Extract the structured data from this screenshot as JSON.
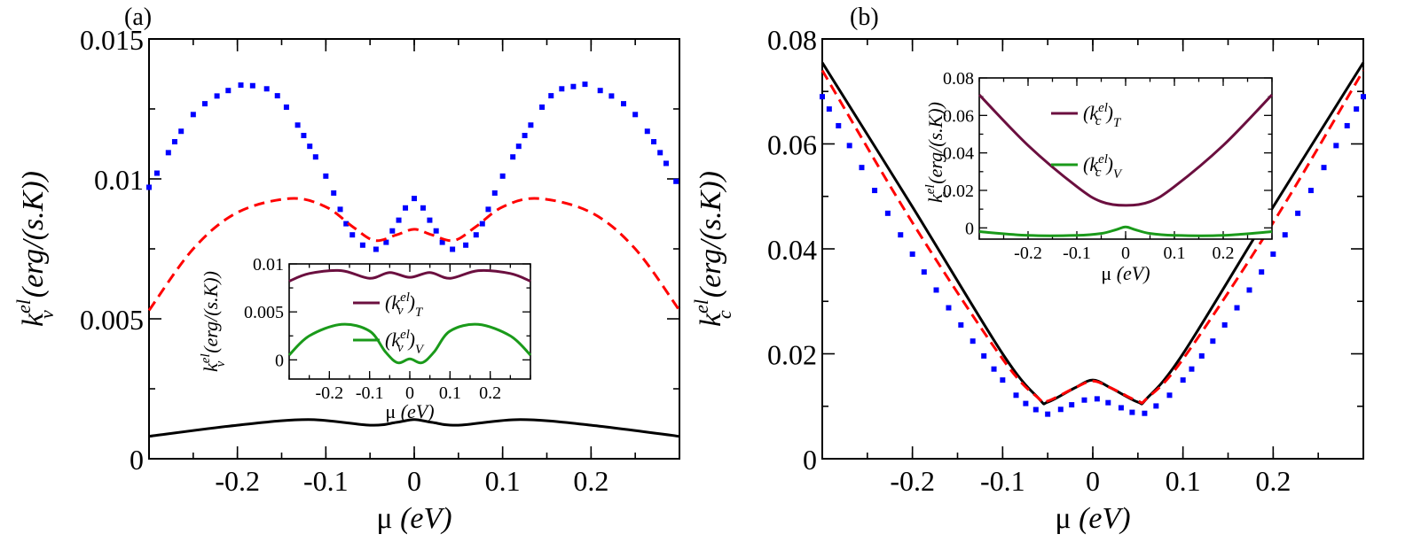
{
  "figure": {
    "panel_a_label": "(a)",
    "panel_b_label": "(b)"
  },
  "colors": {
    "black": "#000000",
    "red": "#ff0000",
    "blue": "#0000ff",
    "purple": "#6b0f3f",
    "green": "#1a9a1a"
  },
  "chart_data": [
    {
      "id": "a",
      "type": "line",
      "panel": "(a)",
      "xlabel_sym": "μ",
      "xlabel_unit": "(eV)",
      "ylabel_sym": "k",
      "ylabel_sup": "el",
      "ylabel_sub": "v",
      "ylabel_unit": "(erg/(s.K))",
      "xlim": [
        -0.3,
        0.3
      ],
      "ylim": [
        0,
        0.015
      ],
      "xticks": [
        -0.2,
        -0.1,
        0,
        0.1,
        0.2
      ],
      "xtick_labels": [
        "-0.2",
        "-0.1",
        "0",
        "0.1",
        "0.2"
      ],
      "yticks": [
        0,
        0.005,
        0.01,
        0.015
      ],
      "ytick_labels": [
        "0",
        "0.005",
        "0.01",
        "0.015"
      ],
      "series": [
        {
          "name": "blue dotted",
          "color": "#0000ff",
          "style": "dotted",
          "x": [
            -0.3,
            -0.25,
            -0.2,
            -0.18,
            -0.15,
            -0.1,
            -0.07,
            -0.04,
            -0.02,
            0,
            0.02,
            0.04,
            0.07,
            0.1,
            0.15,
            0.18,
            0.2,
            0.25,
            0.3
          ],
          "y": [
            0.0097,
            0.0123,
            0.0133,
            0.0133,
            0.0128,
            0.0101,
            0.008,
            0.0075,
            0.0084,
            0.0093,
            0.0084,
            0.0075,
            0.008,
            0.0101,
            0.0128,
            0.0133,
            0.0133,
            0.0123,
            0.0097
          ]
        },
        {
          "name": "red dashed",
          "color": "#ff0000",
          "style": "dashed",
          "x": [
            -0.3,
            -0.25,
            -0.2,
            -0.14,
            -0.1,
            -0.07,
            -0.045,
            -0.02,
            0,
            0.02,
            0.045,
            0.07,
            0.1,
            0.14,
            0.2,
            0.25,
            0.3
          ],
          "y": [
            0.0053,
            0.0075,
            0.0088,
            0.0093,
            0.009,
            0.0083,
            0.0078,
            0.008,
            0.0082,
            0.008,
            0.0078,
            0.0083,
            0.009,
            0.0093,
            0.0088,
            0.0075,
            0.0053
          ]
        },
        {
          "name": "black solid",
          "color": "#000000",
          "style": "solid",
          "x": [
            -0.3,
            -0.2,
            -0.12,
            -0.05,
            -0.02,
            0,
            0.02,
            0.05,
            0.12,
            0.2,
            0.3
          ],
          "y": [
            0.0008,
            0.0012,
            0.0014,
            0.0012,
            0.0013,
            0.0014,
            0.0013,
            0.0012,
            0.0014,
            0.0012,
            0.0008
          ]
        }
      ],
      "inset": {
        "xlabel_sym": "μ",
        "xlabel_unit": "(eV)",
        "ylabel_sym": "k",
        "ylabel_sup": "el",
        "ylabel_sub": "v",
        "ylabel_unit": "(erg/(s.K))",
        "xlim": [
          -0.3,
          0.3
        ],
        "ylim": [
          -0.002,
          0.01
        ],
        "xticks": [
          -0.2,
          -0.1,
          0,
          0.1,
          0.2
        ],
        "xtick_labels": [
          "-0.2",
          "-0.1",
          "0",
          "0.1",
          "0.2"
        ],
        "yticks": [
          0,
          0.005,
          0.01
        ],
        "ytick_labels": [
          "0",
          "0.005",
          "0.01"
        ],
        "legend": [
          {
            "sym": "(k",
            "sup": "el",
            "sub_v": "v",
            "close": ")",
            "sub": "T",
            "color": "#6b0f3f"
          },
          {
            "sym": "(k",
            "sup": "el",
            "sub_v": "v",
            "close": ")",
            "sub": "V",
            "color": "#1a9a1a"
          }
        ],
        "series": [
          {
            "name": "(k_v^el)_T",
            "color": "#6b0f3f",
            "x": [
              -0.3,
              -0.25,
              -0.17,
              -0.1,
              -0.05,
              0,
              0.05,
              0.1,
              0.17,
              0.25,
              0.3
            ],
            "y": [
              0.0082,
              0.009,
              0.0093,
              0.0085,
              0.0091,
              0.0086,
              0.0091,
              0.0085,
              0.0093,
              0.009,
              0.0082
            ]
          },
          {
            "name": "(k_v^el)_V",
            "color": "#1a9a1a",
            "x": [
              -0.3,
              -0.25,
              -0.17,
              -0.1,
              -0.06,
              -0.03,
              0,
              0.03,
              0.06,
              0.1,
              0.17,
              0.25,
              0.3
            ],
            "y": [
              0.0005,
              0.0025,
              0.0037,
              0.003,
              0.0008,
              -0.0003,
              0.0001,
              -0.0003,
              0.0008,
              0.003,
              0.0037,
              0.0025,
              0.0005
            ]
          }
        ]
      }
    },
    {
      "id": "b",
      "type": "line",
      "panel": "(b)",
      "xlabel_sym": "μ",
      "xlabel_unit": "(eV)",
      "ylabel_sym": "k",
      "ylabel_sup": "el",
      "ylabel_sub": "c",
      "ylabel_unit": "(erg/(s.K))",
      "xlim": [
        -0.3,
        0.3
      ],
      "ylim": [
        0,
        0.08
      ],
      "xticks": [
        -0.2,
        -0.1,
        0,
        0.1,
        0.2
      ],
      "xtick_labels": [
        "-0.2",
        "-0.1",
        "0",
        "0.1",
        "0.2"
      ],
      "yticks": [
        0,
        0.02,
        0.04,
        0.06,
        0.08
      ],
      "ytick_labels": [
        "0",
        "0.02",
        "0.04",
        "0.06",
        "0.08"
      ],
      "series": [
        {
          "name": "black solid",
          "color": "#000000",
          "style": "solid",
          "x": [
            -0.3,
            -0.2,
            -0.1,
            -0.06,
            -0.05,
            -0.02,
            0,
            0.02,
            0.05,
            0.06,
            0.1,
            0.2,
            0.3
          ],
          "y": [
            0.0755,
            0.048,
            0.02,
            0.0115,
            0.0108,
            0.0135,
            0.015,
            0.0135,
            0.0108,
            0.0115,
            0.02,
            0.048,
            0.0755
          ]
        },
        {
          "name": "red dashed",
          "color": "#ff0000",
          "style": "dashed",
          "x": [
            -0.3,
            -0.2,
            -0.1,
            -0.06,
            -0.05,
            -0.02,
            0,
            0.02,
            0.05,
            0.06,
            0.1,
            0.2,
            0.3
          ],
          "y": [
            0.074,
            0.045,
            0.019,
            0.0115,
            0.011,
            0.0135,
            0.0148,
            0.0135,
            0.011,
            0.0115,
            0.019,
            0.045,
            0.074
          ]
        },
        {
          "name": "blue dotted",
          "color": "#0000ff",
          "style": "dotted",
          "x": [
            -0.3,
            -0.2,
            -0.1,
            -0.06,
            -0.05,
            -0.02,
            0,
            0.02,
            0.05,
            0.06,
            0.1,
            0.2,
            0.3
          ],
          "y": [
            0.069,
            0.039,
            0.015,
            0.009,
            0.0085,
            0.0105,
            0.0115,
            0.0105,
            0.0085,
            0.009,
            0.015,
            0.039,
            0.069
          ]
        }
      ],
      "inset": {
        "xlabel_sym": "μ",
        "xlabel_unit": "(eV)",
        "ylabel_sym": "k",
        "ylabel_sup": "el",
        "ylabel_sub": "c",
        "ylabel_unit": "(erg/(s.K))",
        "xlim": [
          -0.3,
          0.3
        ],
        "ylim": [
          -0.006,
          0.08
        ],
        "xticks": [
          -0.2,
          -0.1,
          0,
          0.1,
          0.2
        ],
        "xtick_labels": [
          "-0.2",
          "-0.1",
          "0",
          "0.1",
          "0.2"
        ],
        "yticks": [
          0,
          0.02,
          0.04,
          0.06,
          0.08
        ],
        "ytick_labels": [
          "0",
          "0.02",
          "0.04",
          "0.06",
          "0.08"
        ],
        "legend": [
          {
            "sym": "(k",
            "sup": "el",
            "sub_v": "c",
            "close": ")",
            "sub": "T",
            "color": "#6b0f3f"
          },
          {
            "sym": "(k",
            "sup": "el",
            "sub_v": "c",
            "close": ")",
            "sub": "V",
            "color": "#1a9a1a"
          }
        ],
        "series": [
          {
            "name": "(k_c^el)_T",
            "color": "#6b0f3f",
            "x": [
              -0.3,
              -0.2,
              -0.1,
              -0.05,
              0,
              0.05,
              0.1,
              0.2,
              0.3
            ],
            "y": [
              0.071,
              0.044,
              0.022,
              0.014,
              0.012,
              0.014,
              0.022,
              0.044,
              0.071
            ]
          },
          {
            "name": "(k_c^el)_V",
            "color": "#1a9a1a",
            "x": [
              -0.3,
              -0.2,
              -0.1,
              -0.05,
              -0.02,
              0,
              0.02,
              0.05,
              0.1,
              0.2,
              0.3
            ],
            "y": [
              -0.002,
              -0.004,
              -0.004,
              -0.003,
              -0.001,
              0.0005,
              -0.001,
              -0.003,
              -0.004,
              -0.004,
              -0.002
            ]
          }
        ]
      }
    }
  ]
}
